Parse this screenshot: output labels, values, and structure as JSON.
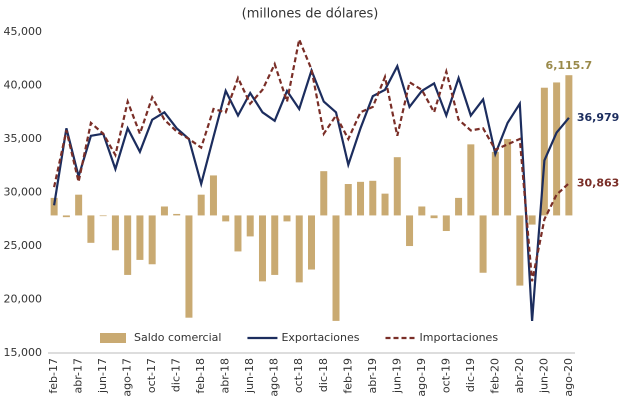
{
  "chart_data": {
    "type": "bar-line",
    "title": "(millones de dólares)",
    "categories": [
      "feb-17",
      null,
      "abr-17",
      null,
      "jun-17",
      null,
      "ago-17",
      null,
      "oct-17",
      null,
      "dic-17",
      null,
      "feb-18",
      null,
      "abr-18",
      null,
      "jun-18",
      null,
      "ago-18",
      null,
      "oct-18",
      null,
      "dic-18",
      null,
      "feb-19",
      null,
      "abr-19",
      null,
      "jun-19",
      null,
      "ago-19",
      null,
      "oct-19",
      null,
      "dic-19",
      null,
      "feb-20",
      null,
      "abr-20",
      null,
      "jun-20",
      null,
      "ago-20"
    ],
    "ylim": [
      15000,
      45000
    ],
    "yticks": [
      {
        "value": 15000,
        "label": "15,000"
      },
      {
        "value": 20000,
        "label": "20,000"
      },
      {
        "value": 25000,
        "label": "25,000"
      },
      {
        "value": 30000,
        "label": "30,000"
      },
      {
        "value": 35000,
        "label": "35,000"
      },
      {
        "value": 40000,
        "label": "40,000"
      },
      {
        "value": 45000,
        "label": "45,000"
      }
    ],
    "y2lim": [
      -6000,
      8000
    ],
    "grid": false,
    "legend": "bottom",
    "series": [
      {
        "name": "Saldo comercial",
        "type": "bar",
        "axis": "y2",
        "color": "#c9aa72",
        "values": [
          765,
          -75,
          905,
          -1195,
          -30,
          -1520,
          -2595,
          -1940,
          -2130,
          390,
          65,
          -4460,
          905,
          1745,
          -260,
          -1570,
          -915,
          -2875,
          -2595,
          -260,
          -2920,
          -2360,
          1930,
          -4600,
          1370,
          1465,
          1510,
          950,
          2540,
          -1335,
          390,
          -120,
          -680,
          765,
          3100,
          -2500,
          2770,
          3330,
          -3060,
          -400,
          5570,
          5800,
          6115.7
        ],
        "value_labels": [
          null,
          null,
          null,
          null,
          null,
          null,
          null,
          null,
          null,
          null,
          null,
          null,
          null,
          null,
          null,
          null,
          null,
          null,
          null,
          null,
          null,
          null,
          null,
          null,
          null,
          null,
          null,
          null,
          null,
          null,
          null,
          null,
          null,
          null,
          null,
          null,
          null,
          null,
          null,
          null,
          null,
          null,
          "6,115.7"
        ],
        "label_color": "#9a8a4a"
      },
      {
        "name": "Exportaciones",
        "type": "line",
        "color": "#1c2d5e",
        "dash": false,
        "values": [
          28800,
          36000,
          31500,
          35300,
          35500,
          32200,
          36000,
          33800,
          36800,
          37500,
          36000,
          35000,
          30800,
          35200,
          39500,
          37200,
          39300,
          37500,
          36700,
          39500,
          37800,
          41400,
          38500,
          37500,
          32600,
          36000,
          39000,
          39600,
          41800,
          38000,
          39500,
          40200,
          37200,
          40700,
          37200,
          38700,
          33600,
          36500,
          38300,
          18000,
          33000,
          35600,
          36979.0
        ],
        "value_labels": [
          null,
          null,
          null,
          null,
          null,
          null,
          null,
          null,
          null,
          null,
          null,
          null,
          null,
          null,
          null,
          null,
          null,
          null,
          null,
          null,
          null,
          null,
          null,
          null,
          null,
          null,
          null,
          null,
          null,
          null,
          null,
          null,
          null,
          null,
          null,
          null,
          null,
          null,
          null,
          null,
          null,
          null,
          "36,979.0"
        ]
      },
      {
        "name": "Importaciones",
        "type": "line",
        "color": "#7a2e27",
        "dash": true,
        "values": [
          30500,
          35800,
          31000,
          36500,
          35500,
          33500,
          38500,
          35500,
          38900,
          36800,
          35700,
          35000,
          34200,
          37800,
          37500,
          40700,
          38300,
          39600,
          42000,
          38500,
          44300,
          41500,
          35500,
          37200,
          35000,
          37500,
          38000,
          40800,
          35300,
          40300,
          39600,
          37500,
          41300,
          36800,
          35800,
          36000,
          34000,
          34500,
          35000,
          21700,
          27500,
          29800,
          30863.3
        ],
        "value_labels": [
          null,
          null,
          null,
          null,
          null,
          null,
          null,
          null,
          null,
          null,
          null,
          null,
          null,
          null,
          null,
          null,
          null,
          null,
          null,
          null,
          null,
          null,
          null,
          null,
          null,
          null,
          null,
          null,
          null,
          null,
          null,
          null,
          null,
          null,
          null,
          null,
          null,
          null,
          null,
          null,
          null,
          null,
          "30,863.3"
        ]
      }
    ]
  }
}
